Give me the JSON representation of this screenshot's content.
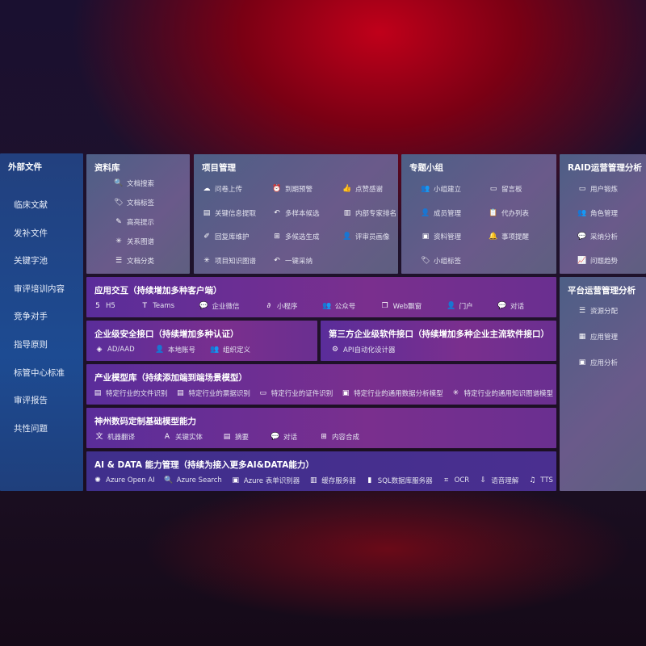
{
  "sidebar": {
    "title": "外部文件",
    "items": [
      "临床文献",
      "发补文件",
      "关键字池",
      "审评培训内容",
      "竞争对手",
      "指导原则",
      "标管中心标准",
      "审评报告",
      "共性问题"
    ]
  },
  "library": {
    "title": "资料库",
    "items": [
      {
        "icon": "document-search-icon",
        "label": "文档搜索"
      },
      {
        "icon": "tag-icon",
        "label": "文档标签"
      },
      {
        "icon": "pen-icon",
        "label": "高亮提示"
      },
      {
        "icon": "graph-icon",
        "label": "关系图谱"
      },
      {
        "icon": "document-category-icon",
        "label": "文档分类"
      }
    ]
  },
  "project": {
    "title": "项目管理",
    "items": [
      {
        "icon": "cloud-upload-icon",
        "label": "问卷上传"
      },
      {
        "icon": "alarm-icon",
        "label": "到期预警"
      },
      {
        "icon": "thumbs-up-icon",
        "label": "点赞感谢"
      },
      {
        "icon": "extract-icon",
        "label": "关键信息提取"
      },
      {
        "icon": "reply-icon",
        "label": "多样本候选"
      },
      {
        "icon": "ranking-icon",
        "label": "内部专家排名"
      },
      {
        "icon": "edit-icon",
        "label": "回复库维护"
      },
      {
        "icon": "puzzle-icon",
        "label": "多候选生成"
      },
      {
        "icon": "user-icon",
        "label": "评审员画像"
      },
      {
        "icon": "knowledge-graph-icon",
        "label": "项目知识图谱"
      },
      {
        "icon": "reply-icon",
        "label": "一键采纳"
      }
    ]
  },
  "group": {
    "title": "专题小组",
    "items": [
      {
        "icon": "group-icon",
        "label": "小组建立"
      },
      {
        "icon": "bbs-icon",
        "label": "留言板"
      },
      {
        "icon": "add-user-icon",
        "label": "成员管理"
      },
      {
        "icon": "clipboard-icon",
        "label": "代办列表"
      },
      {
        "icon": "folder-icon",
        "label": "资料管理"
      },
      {
        "icon": "bell-icon",
        "label": "事项提醒"
      },
      {
        "icon": "tag-icon",
        "label": "小组标签"
      }
    ]
  },
  "raid": {
    "title": "RAID运营管理分析",
    "items": [
      {
        "icon": "id-card-icon",
        "label": "用户锻炼"
      },
      {
        "icon": "users-icon",
        "label": "角色管理"
      },
      {
        "icon": "qa-icon",
        "label": "采纳分析"
      },
      {
        "icon": "trend-icon",
        "label": "问题趋势"
      }
    ]
  },
  "platform": {
    "title": "平台运营管理分析",
    "items": [
      {
        "icon": "checklist-icon",
        "label": "资源分配"
      },
      {
        "icon": "apps-icon",
        "label": "应用管理"
      },
      {
        "icon": "analytics-icon",
        "label": "应用分析"
      }
    ]
  },
  "app": {
    "title": "应用交互（持续增加多种客户端）",
    "items": [
      {
        "icon": "html5-icon",
        "label": "H5"
      },
      {
        "icon": "teams-icon",
        "label": "Teams"
      },
      {
        "icon": "wechat-icon",
        "label": "企业微信"
      },
      {
        "icon": "miniprogram-icon",
        "label": "小程序"
      },
      {
        "icon": "public-account-icon",
        "label": "公众号"
      },
      {
        "icon": "window-icon",
        "label": "Web飘窗"
      },
      {
        "icon": "portal-icon",
        "label": "门户"
      },
      {
        "icon": "chat-icon",
        "label": "对话"
      }
    ]
  },
  "security": {
    "title": "企业级安全接口（持续增加多种认证）",
    "items": [
      {
        "icon": "ad-icon",
        "label": "AD/AAD"
      },
      {
        "icon": "local-account-icon",
        "label": "本地账号"
      },
      {
        "icon": "org-icon",
        "label": "组织定义"
      }
    ]
  },
  "third": {
    "title": "第三方企业级软件接口（持续增加多种企业主流软件接口）",
    "items": [
      {
        "icon": "api-gear-icon",
        "label": "API自动化设计器"
      }
    ]
  },
  "industry": {
    "title": "产业模型库（持续添加端到端场景模型）",
    "items": [
      {
        "icon": "file-icon",
        "label": "特定行业的文件识别"
      },
      {
        "icon": "receipt-icon",
        "label": "特定行业的票据识别"
      },
      {
        "icon": "id-card-icon",
        "label": "特定行业的证件识别"
      },
      {
        "icon": "chart-icon",
        "label": "特定行业的通用数据分析模型"
      },
      {
        "icon": "graph-icon",
        "label": "特定行业的通用知识图谱模型"
      }
    ]
  },
  "base": {
    "title": "神州数码定制基础模型能力",
    "items": [
      {
        "icon": "translate-icon",
        "label": "机器翻译"
      },
      {
        "icon": "entity-icon",
        "label": "关键实体"
      },
      {
        "icon": "summary-icon",
        "label": "摘要"
      },
      {
        "icon": "chat-icon",
        "label": "对话"
      },
      {
        "icon": "compose-icon",
        "label": "内容合成"
      }
    ]
  },
  "ai": {
    "title": "AI & DATA 能力管理（持续为接入更多AI&DATA能力）",
    "items": [
      {
        "icon": "openai-icon",
        "label": "Azure Open AI"
      },
      {
        "icon": "search-icon",
        "label": "Azure Search"
      },
      {
        "icon": "form-recognizer-icon",
        "label": "Azure 表单识别器"
      },
      {
        "icon": "cache-icon",
        "label": "缓存服务器"
      },
      {
        "icon": "sql-icon",
        "label": "SQL数据库服务器"
      },
      {
        "icon": "ocr-icon",
        "label": "OCR"
      },
      {
        "icon": "speech-icon",
        "label": "语音理解"
      },
      {
        "icon": "tts-icon",
        "label": "TTS"
      }
    ]
  }
}
